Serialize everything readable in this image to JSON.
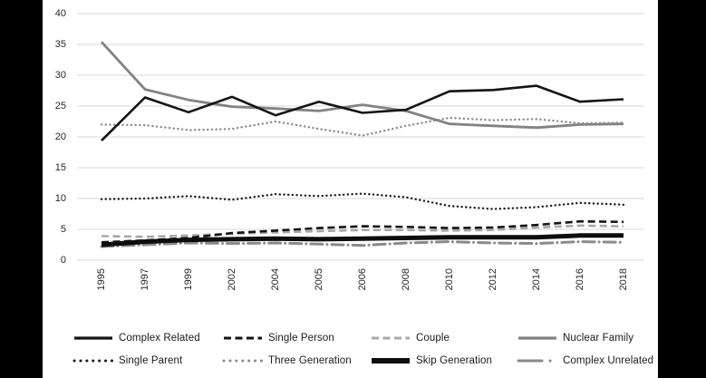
{
  "frame": {
    "background": "#ffffff",
    "side_bar_color": "#000000"
  },
  "chart_data": {
    "type": "line",
    "title": "",
    "xlabel": "",
    "ylabel": "",
    "x_labels": [
      "1995",
      "1997",
      "1999",
      "2002",
      "2004",
      "2005",
      "2006",
      "2008",
      "2010",
      "2012",
      "2014",
      "2016",
      "2018"
    ],
    "yticks": [
      0,
      5,
      10,
      15,
      20,
      25,
      30,
      35,
      40
    ],
    "ylim": [
      0,
      40
    ],
    "grid": true,
    "gridline_color": "#d9d9d9",
    "tick_label_color": "#262626",
    "legend_position": "bottom",
    "series": [
      {
        "key": "complex_related",
        "name": "Complex Related",
        "color": "#141414",
        "style": "solid",
        "width": 2.6,
        "z": 8,
        "values": [
          19.4,
          26.4,
          24.0,
          26.5,
          23.5,
          25.7,
          23.9,
          24.4,
          27.4,
          27.6,
          28.3,
          25.7,
          26.1
        ]
      },
      {
        "key": "single_person",
        "name": "Single Person",
        "color": "#141414",
        "style": "dash",
        "width": 2.6,
        "z": 6,
        "values": [
          2.9,
          3.2,
          3.6,
          4.4,
          4.8,
          5.2,
          5.5,
          5.4,
          5.2,
          5.3,
          5.7,
          6.3,
          6.2
        ]
      },
      {
        "key": "couple",
        "name": "Couple",
        "color": "#a8a8a8",
        "style": "dash",
        "width": 2.6,
        "z": 4,
        "values": [
          3.9,
          3.8,
          4.0,
          4.3,
          4.5,
          4.7,
          4.9,
          4.9,
          4.8,
          4.9,
          5.3,
          5.6,
          5.5
        ]
      },
      {
        "key": "nuclear_family",
        "name": "Nuclear Family",
        "color": "#828282",
        "style": "solid",
        "width": 2.8,
        "z": 1,
        "values": [
          35.4,
          27.7,
          26.0,
          24.9,
          24.6,
          24.2,
          25.2,
          24.2,
          22.1,
          21.8,
          21.5,
          22.0,
          22.1
        ]
      },
      {
        "key": "single_parent",
        "name": "Single Parent",
        "color": "#1a1a1a",
        "style": "dot",
        "width": 2.4,
        "z": 3,
        "values": [
          9.9,
          10.0,
          10.4,
          9.8,
          10.7,
          10.4,
          10.8,
          10.2,
          8.8,
          8.3,
          8.6,
          9.3,
          9.0
        ]
      },
      {
        "key": "three_generation",
        "name": "Three Generation",
        "color": "#8a8a8a",
        "style": "dot",
        "width": 2.4,
        "z": 2,
        "values": [
          22.0,
          21.9,
          21.1,
          21.3,
          22.5,
          21.3,
          20.2,
          21.8,
          23.1,
          22.7,
          22.9,
          22.2,
          22.3
        ]
      },
      {
        "key": "skip_generation",
        "name": "Skip Generation",
        "color": "#0d0d0d",
        "style": "solid",
        "width": 5,
        "z": 7,
        "values": [
          2.5,
          3.0,
          3.3,
          3.4,
          3.5,
          3.4,
          3.5,
          3.6,
          3.7,
          3.7,
          3.7,
          4.0,
          4.0
        ]
      },
      {
        "key": "complex_unrelated",
        "name": "Complex Unrelated",
        "color": "#8a8a8a",
        "style": "long-dash-dot",
        "width": 3,
        "z": 5,
        "values": [
          2.2,
          2.5,
          2.8,
          2.7,
          2.8,
          2.6,
          2.4,
          2.8,
          3.0,
          2.8,
          2.7,
          3.0,
          2.9
        ]
      }
    ],
    "legend_rows": [
      [
        "complex_related",
        "single_person",
        "couple",
        "nuclear_family"
      ],
      [
        "single_parent",
        "three_generation",
        "skip_generation",
        "complex_unrelated"
      ]
    ]
  }
}
